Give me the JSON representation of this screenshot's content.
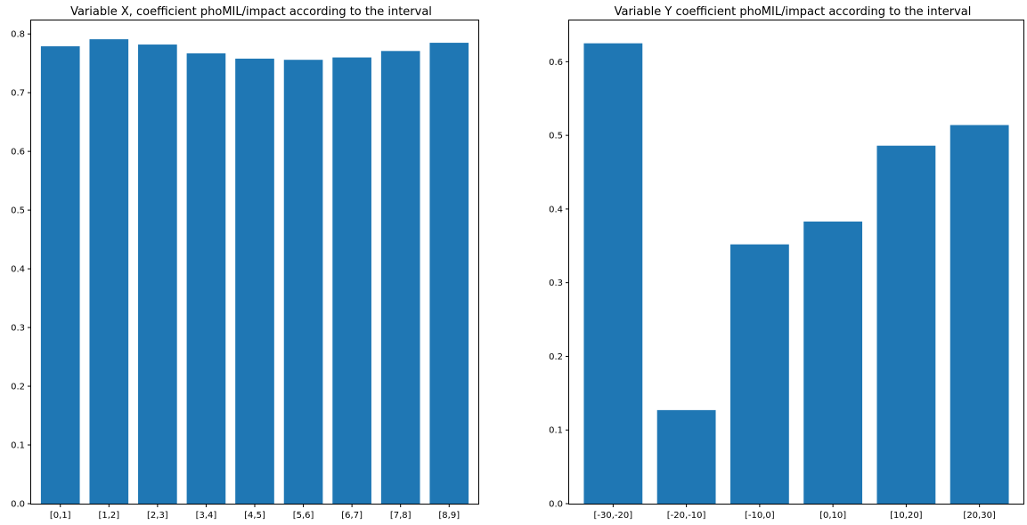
{
  "chart_data": [
    {
      "type": "bar",
      "title": "Variable X, coefficient phoMIL/impact according to the interval",
      "xlabel": "",
      "ylabel": "",
      "categories": [
        "[0,1]",
        "[1,2]",
        "[2,3]",
        "[3,4]",
        "[4,5]",
        "[5,6]",
        "[6,7]",
        "[7,8]",
        "[8,9]"
      ],
      "values": [
        0.779,
        0.791,
        0.782,
        0.767,
        0.758,
        0.756,
        0.76,
        0.771,
        0.785
      ],
      "ylim": [
        0,
        0.823
      ],
      "yticks": [
        "0.0",
        "0.1",
        "0.2",
        "0.3",
        "0.4",
        "0.5",
        "0.6",
        "0.7",
        "0.8"
      ],
      "bar_color": "#1f77b4",
      "grid": false
    },
    {
      "type": "bar",
      "title": "Variable Y coefficient phoMIL/impact according to the interval",
      "xlabel": "",
      "ylabel": "",
      "categories": [
        "[-30,-20]",
        "[-20,-10]",
        "[-10,0]",
        "[0,10]",
        "[10,20]",
        "[20,30]"
      ],
      "values": [
        0.625,
        0.127,
        0.352,
        0.383,
        0.486,
        0.514
      ],
      "ylim": [
        0,
        0.656
      ],
      "yticks": [
        "0.0",
        "0.1",
        "0.2",
        "0.3",
        "0.4",
        "0.5",
        "0.6"
      ],
      "bar_color": "#1f77b4",
      "grid": false
    }
  ]
}
